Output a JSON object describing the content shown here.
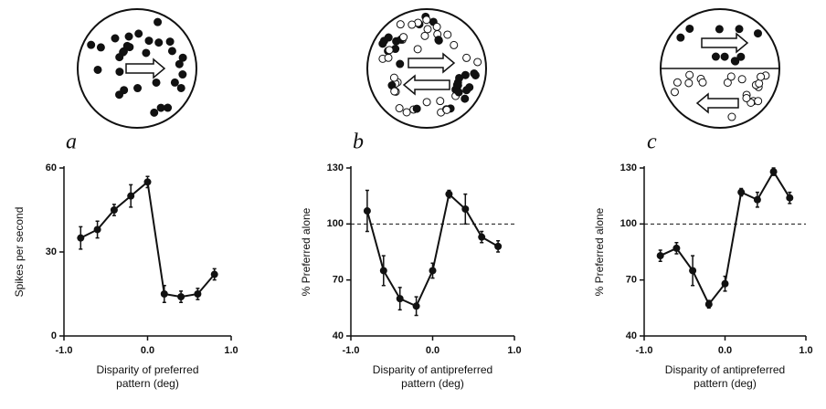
{
  "chart_data": [
    {
      "type": "line",
      "label": "a",
      "ylabel": "Spikes per second",
      "xlabel": [
        "Disparity of preferred",
        "pattern (deg)"
      ],
      "x": [
        -0.8,
        -0.6,
        -0.4,
        -0.2,
        0,
        0.2,
        0.4,
        0.6,
        0.8
      ],
      "values": [
        35,
        38,
        45,
        50,
        55,
        15,
        14,
        15,
        22
      ],
      "errors": [
        4,
        3,
        2,
        4,
        2,
        3,
        2,
        2,
        2
      ],
      "color": "#111111",
      "xlim": [
        -1,
        1
      ],
      "xticks": [
        {
          "value": -1,
          "label": "-1.0"
        },
        {
          "value": 0,
          "label": "0.0"
        },
        {
          "value": 1,
          "label": "1.0"
        }
      ],
      "ylim": [
        0,
        60
      ],
      "yticks": [
        0,
        30,
        60
      ]
    },
    {
      "type": "line",
      "label": "b",
      "ylabel": "% Preferred alone",
      "xlabel": [
        "Disparity of antipreferred",
        "pattern (deg)"
      ],
      "x": [
        -0.8,
        -0.6,
        -0.4,
        -0.2,
        0,
        0.2,
        0.4,
        0.6,
        0.8
      ],
      "values": [
        107,
        75,
        60,
        56,
        75,
        116,
        108,
        93,
        88
      ],
      "errors": [
        11,
        8,
        6,
        5,
        4,
        2,
        8,
        3,
        3
      ],
      "color": "#111111",
      "reference_line": 100,
      "xlim": [
        -1,
        1
      ],
      "xticks": [
        {
          "value": -1,
          "label": "-1.0"
        },
        {
          "value": 0,
          "label": "0.0"
        },
        {
          "value": 1,
          "label": "1.0"
        }
      ],
      "ylim": [
        40,
        130
      ],
      "yticks": [
        40,
        70,
        100,
        130
      ]
    },
    {
      "type": "line",
      "label": "c",
      "ylabel": "% Preferred alone",
      "xlabel": [
        "Disparity of antipreferred",
        "pattern (deg)"
      ],
      "x": [
        -0.8,
        -0.6,
        -0.4,
        -0.2,
        0,
        0.2,
        0.4,
        0.6,
        0.8
      ],
      "values": [
        83,
        87,
        75,
        57,
        68,
        117,
        113,
        128,
        114
      ],
      "errors": [
        3,
        3,
        8,
        2,
        4,
        2,
        4,
        2,
        3
      ],
      "color": "#111111",
      "reference_line": 100,
      "xlim": [
        -1,
        1
      ],
      "xticks": [
        {
          "value": -1,
          "label": "-1.0"
        },
        {
          "value": 0,
          "label": "0.0"
        },
        {
          "value": 1,
          "label": "1.0"
        }
      ],
      "ylim": [
        40,
        130
      ],
      "yticks": [
        40,
        70,
        100,
        130
      ]
    }
  ]
}
